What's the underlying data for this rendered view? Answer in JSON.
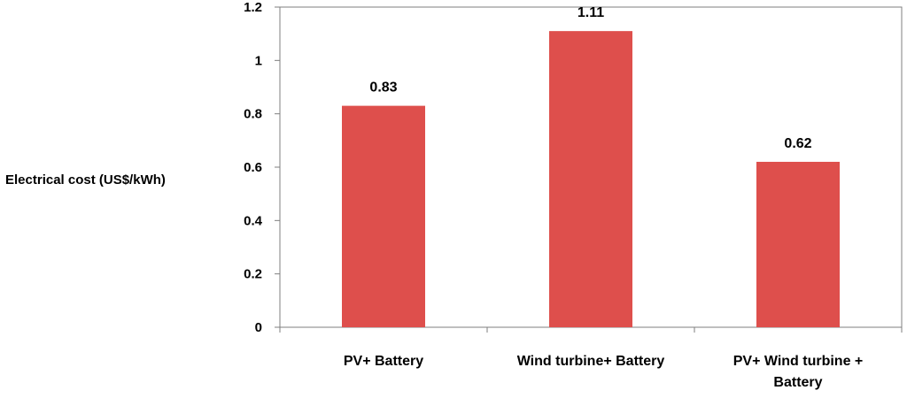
{
  "chart_data": {
    "type": "bar",
    "categories": [
      [
        "PV+ Battery"
      ],
      [
        "Wind turbine+ Battery"
      ],
      [
        "PV+ Wind turbine +",
        "Battery"
      ]
    ],
    "series": [
      {
        "values": [
          0.83,
          1.11,
          0.62
        ],
        "color": "#de4f4c"
      }
    ],
    "data_labels": [
      "0.83",
      "1.11",
      "0.62"
    ],
    "title": "",
    "xlabel": "",
    "ylabel": "Electrical cost (US$/kWh)",
    "ylim": [
      0,
      1.2
    ],
    "yticks": [
      0,
      0.2,
      0.4,
      0.6,
      0.8,
      1,
      1.2
    ],
    "ytick_labels": [
      "0",
      "0.2",
      "0.4",
      "0.6",
      "0.8",
      "1",
      "1.2"
    ],
    "grid": false,
    "legend": "none"
  }
}
